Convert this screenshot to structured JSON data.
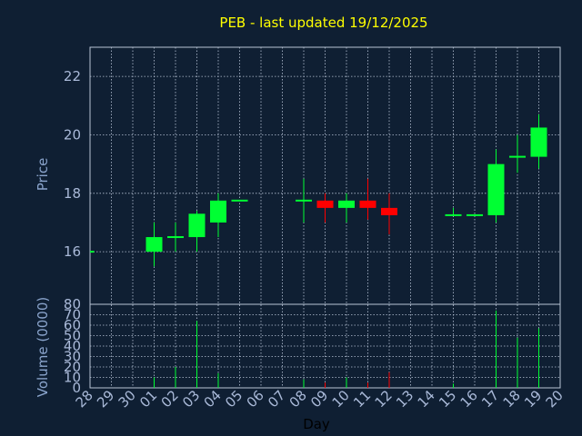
{
  "chart_data": {
    "type": "candlestick",
    "title": "PEB - last updated 19/12/2025",
    "xlabel": "Day",
    "categories": [
      "28",
      "29",
      "30",
      "01",
      "02",
      "03",
      "04",
      "05",
      "06",
      "07",
      "08",
      "09",
      "10",
      "11",
      "12",
      "13",
      "14",
      "15",
      "16",
      "17",
      "18",
      "19",
      "20"
    ],
    "price_panel": {
      "ylabel": "Price",
      "ylim": [
        14.2,
        23.0
      ],
      "yticks": [
        16,
        18,
        20,
        22
      ],
      "candles": [
        {
          "day": "28",
          "open": 16.0,
          "high": 16.0,
          "low": 16.0,
          "close": 16.0
        },
        {
          "day": "01",
          "open": 16.0,
          "high": 17.0,
          "low": 15.5,
          "close": 16.5
        },
        {
          "day": "02",
          "open": 16.5,
          "high": 17.0,
          "low": 16.0,
          "close": 16.5
        },
        {
          "day": "03",
          "open": 16.5,
          "high": 17.4,
          "low": 16.0,
          "close": 17.3
        },
        {
          "day": "04",
          "open": 17.0,
          "high": 18.0,
          "low": 16.5,
          "close": 17.75
        },
        {
          "day": "05",
          "open": 17.75,
          "high": 17.75,
          "low": 17.75,
          "close": 17.75
        },
        {
          "day": "08",
          "open": 17.75,
          "high": 18.5,
          "low": 17.0,
          "close": 17.75
        },
        {
          "day": "09",
          "open": 17.75,
          "high": 18.0,
          "low": 17.0,
          "close": 17.5
        },
        {
          "day": "10",
          "open": 17.5,
          "high": 18.0,
          "low": 17.0,
          "close": 17.75
        },
        {
          "day": "11",
          "open": 17.75,
          "high": 18.5,
          "low": 17.1,
          "close": 17.5
        },
        {
          "day": "12",
          "open": 17.5,
          "high": 18.0,
          "low": 16.6,
          "close": 17.25
        },
        {
          "day": "15",
          "open": 17.25,
          "high": 17.5,
          "low": 17.25,
          "close": 17.25
        },
        {
          "day": "16",
          "open": 17.25,
          "high": 17.25,
          "low": 17.25,
          "close": 17.25
        },
        {
          "day": "17",
          "open": 17.25,
          "high": 19.5,
          "low": 17.0,
          "close": 19.0
        },
        {
          "day": "18",
          "open": 19.25,
          "high": 20.0,
          "low": 18.7,
          "close": 19.25
        },
        {
          "day": "19",
          "open": 19.25,
          "high": 20.7,
          "low": 18.85,
          "close": 20.25
        }
      ]
    },
    "volume_panel": {
      "ylabel": "Volume (0000)",
      "ylim": [
        0,
        80
      ],
      "yticks": [
        0,
        10,
        20,
        30,
        40,
        50,
        60,
        70,
        80
      ],
      "bars": [
        {
          "day": "01",
          "value": 10,
          "direction": "up"
        },
        {
          "day": "02",
          "value": 20,
          "direction": "up"
        },
        {
          "day": "03",
          "value": 64,
          "direction": "up"
        },
        {
          "day": "04",
          "value": 14,
          "direction": "up"
        },
        {
          "day": "08",
          "value": 8,
          "direction": "up"
        },
        {
          "day": "09",
          "value": 5,
          "direction": "down"
        },
        {
          "day": "10",
          "value": 10,
          "direction": "up"
        },
        {
          "day": "11",
          "value": 5,
          "direction": "down"
        },
        {
          "day": "12",
          "value": 15,
          "direction": "down"
        },
        {
          "day": "15",
          "value": 4,
          "direction": "up"
        },
        {
          "day": "17",
          "value": 74,
          "direction": "up"
        },
        {
          "day": "18",
          "value": 48,
          "direction": "up"
        },
        {
          "day": "19",
          "value": 57,
          "direction": "up"
        }
      ]
    },
    "colors": {
      "background": "#0f1f33",
      "up": "#00ff33",
      "down": "#ff0000",
      "title": "#ffff00",
      "tick": "#a9b9d8",
      "axis_label": "#8aa4cc",
      "grid": "#b8c4d6",
      "xlabel": "#000000"
    },
    "grid": true
  }
}
